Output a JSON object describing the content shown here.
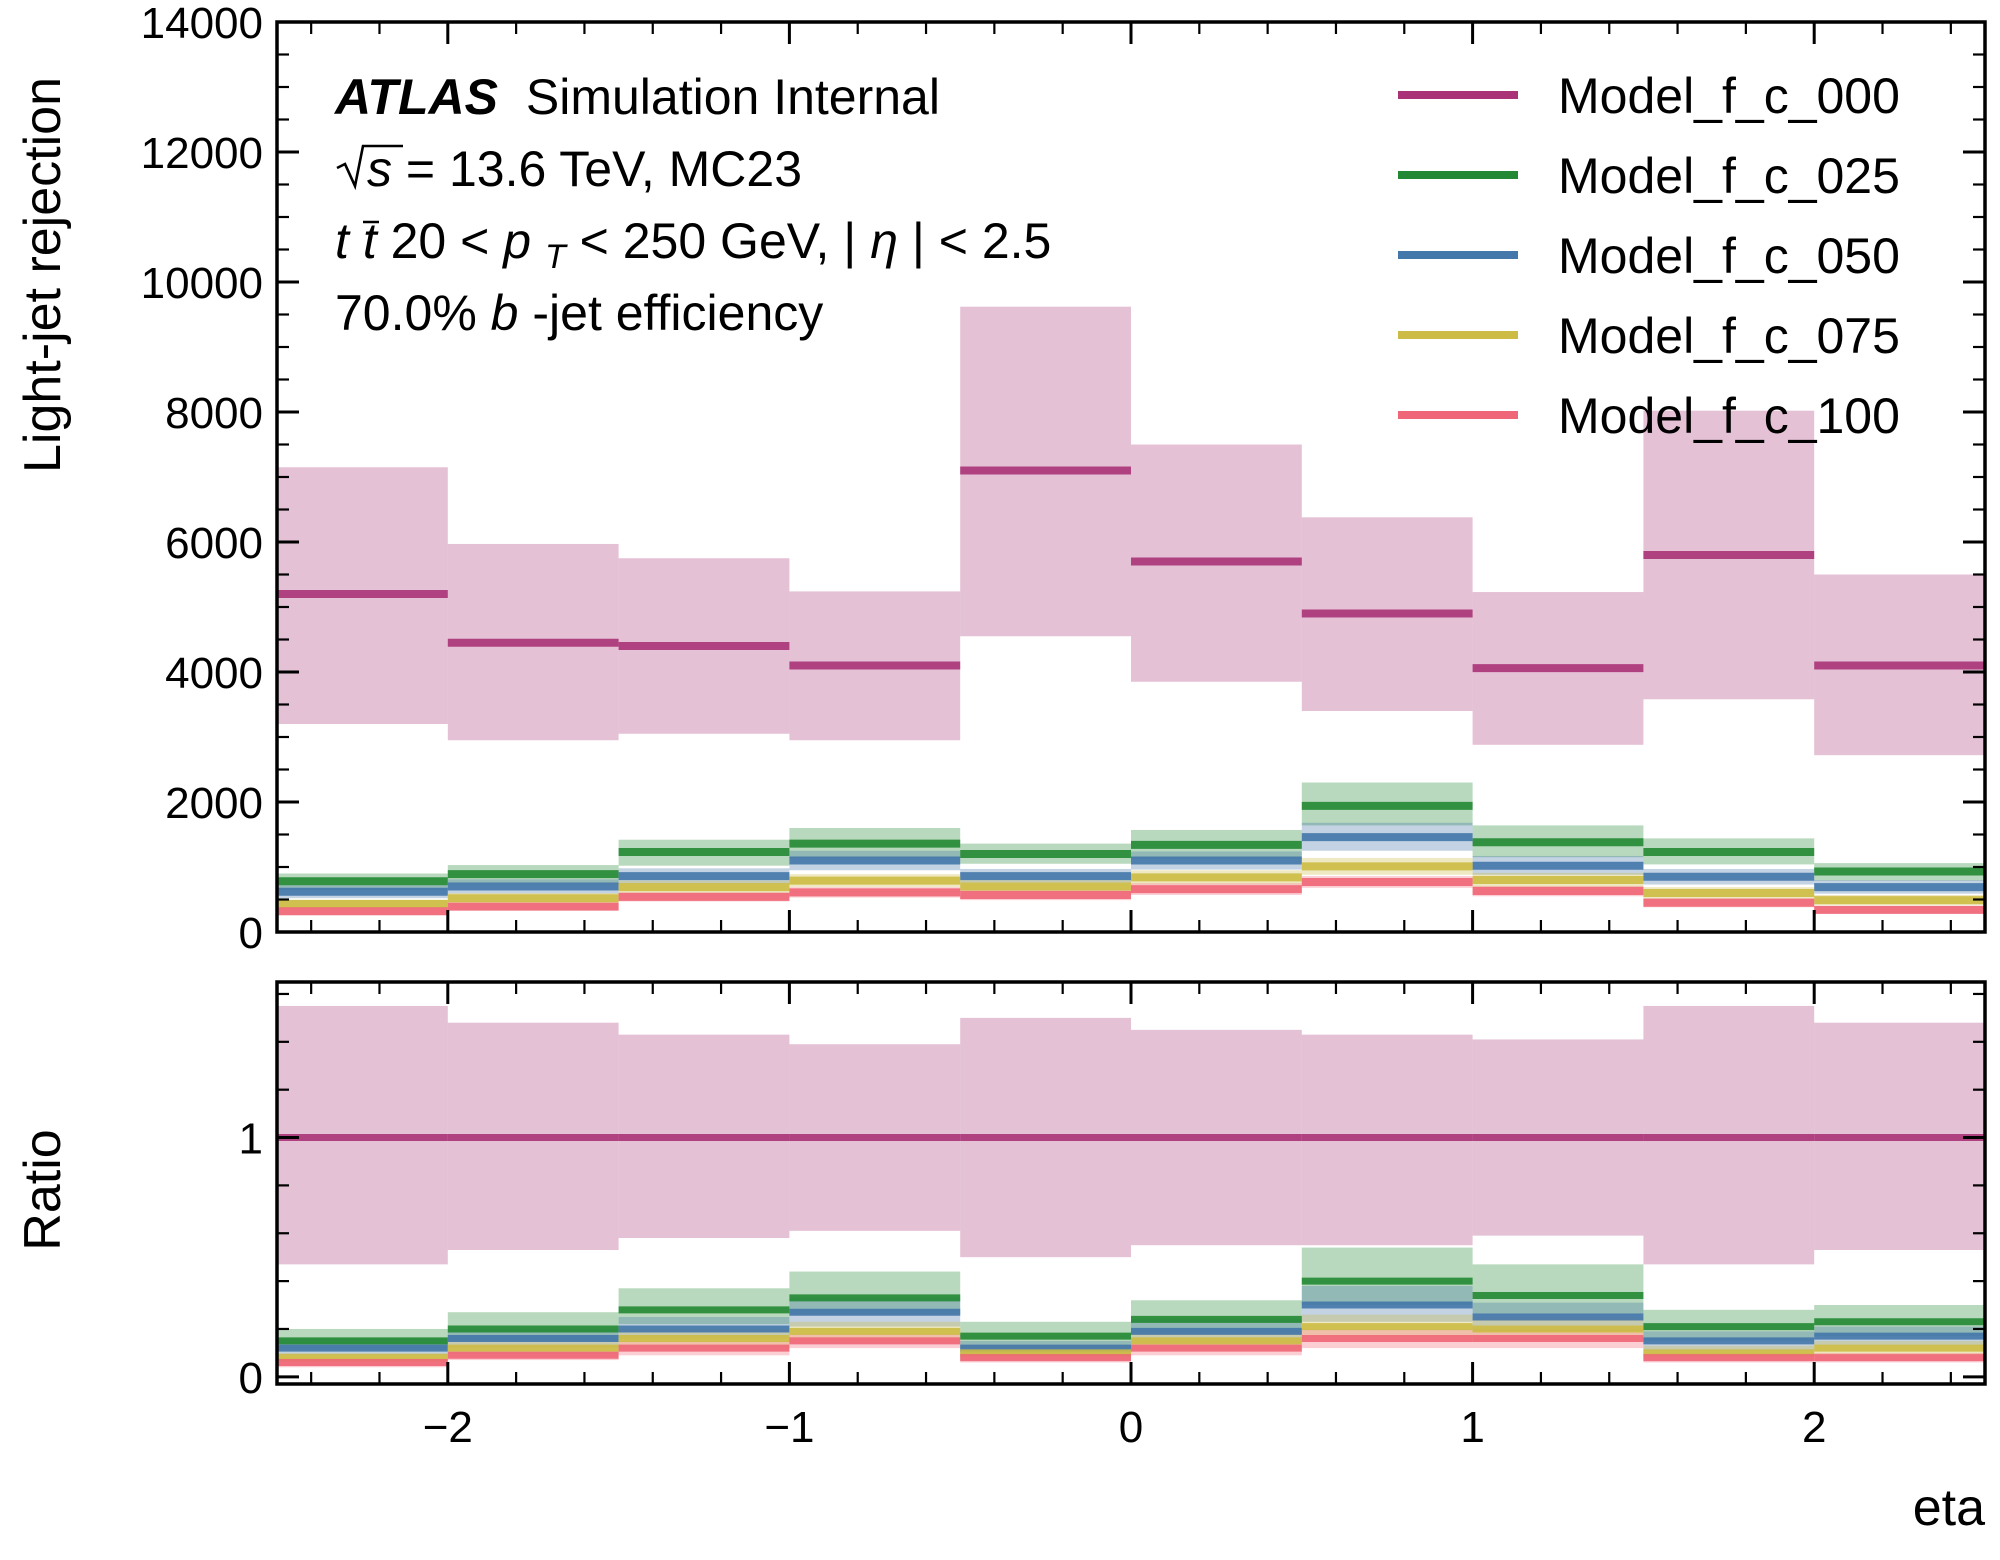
{
  "chart_data": [
    {
      "type": "line",
      "panel": "main",
      "ylabel": "Light-jet rejection",
      "xlabel": "",
      "xlim": [
        -2.5,
        2.5
      ],
      "ylim": [
        0,
        14000
      ],
      "yticks": [
        0,
        2000,
        4000,
        6000,
        8000,
        10000,
        12000,
        14000
      ],
      "ytick_labels": [
        "0",
        "2000",
        "4000",
        "6000",
        "8000",
        "10000",
        "12000",
        "14000"
      ],
      "bin_edges": [
        -2.5,
        -2.0,
        -1.5,
        -1.0,
        -0.5,
        0.0,
        0.5,
        1.0,
        1.5,
        2.0,
        2.5
      ],
      "legend_position": "top-right",
      "annotations": {
        "atlas": "ATLAS",
        "label": "Simulation Internal",
        "line2_sqrt": "s",
        "line2_rest": " = 13.6 TeV, MC23",
        "line3_a": "t",
        "line3_b": "t",
        "line3_c": " 20 < ",
        "line3_d": "p",
        "line3_e": "T",
        "line3_f": " < 250 GeV, |",
        "line3_g": "η",
        "line3_h": "| < 2.5",
        "line4_a": "70.0% ",
        "line4_b": "b",
        "line4_c": "-jet efficiency"
      },
      "series": [
        {
          "name": "Model_f_c_000",
          "color": "#aa3377",
          "values": [
            5200,
            4450,
            4400,
            4100,
            7100,
            5700,
            4900,
            4060,
            5800,
            4100
          ],
          "err_low": [
            3200,
            2950,
            3050,
            2950,
            4550,
            3850,
            3400,
            2880,
            3580,
            2720
          ],
          "err_high": [
            7150,
            5970,
            5750,
            5240,
            9620,
            7500,
            6380,
            5230,
            8020,
            5500
          ]
        },
        {
          "name": "Model_f_c_025",
          "color": "#228833",
          "values": [
            780,
            890,
            1230,
            1360,
            1200,
            1340,
            1940,
            1380,
            1230,
            930
          ],
          "err_low": [
            640,
            740,
            1020,
            1130,
            1050,
            1120,
            1640,
            1150,
            1040,
            790
          ],
          "err_high": [
            900,
            1030,
            1420,
            1600,
            1360,
            1570,
            2300,
            1640,
            1440,
            1060
          ]
        },
        {
          "name": "Model_f_c_050",
          "color": "#4477aa",
          "values": [
            620,
            700,
            860,
            1100,
            860,
            1100,
            1460,
            1020,
            850,
            690
          ],
          "err_low": [
            520,
            590,
            740,
            950,
            760,
            960,
            1250,
            880,
            730,
            590
          ],
          "err_high": [
            720,
            810,
            980,
            1250,
            970,
            1240,
            1680,
            1170,
            970,
            800
          ]
        },
        {
          "name": "Model_f_c_075",
          "color": "#ccbb44",
          "values": [
            430,
            520,
            690,
            790,
            700,
            840,
            1010,
            800,
            600,
            490
          ],
          "err_low": [
            360,
            440,
            590,
            690,
            610,
            730,
            880,
            690,
            510,
            410
          ],
          "err_high": [
            500,
            600,
            790,
            890,
            800,
            950,
            1140,
            910,
            690,
            570
          ]
        },
        {
          "name": "Model_f_c_100",
          "color": "#ee6677",
          "values": [
            320,
            390,
            540,
            610,
            570,
            660,
            770,
            630,
            450,
            340
          ],
          "err_low": [
            260,
            330,
            470,
            530,
            490,
            570,
            680,
            550,
            380,
            280
          ],
          "err_high": [
            380,
            450,
            610,
            690,
            650,
            750,
            860,
            710,
            520,
            400
          ]
        }
      ]
    },
    {
      "type": "line",
      "panel": "ratio",
      "ylabel": "Ratio",
      "xlabel": "eta",
      "xlim": [
        -2.5,
        2.5
      ],
      "ylim": [
        -0.03,
        1.65
      ],
      "yticks": [
        0,
        1
      ],
      "ytick_labels": [
        "0",
        "1"
      ],
      "xticks": [
        -2,
        -1,
        0,
        1,
        2
      ],
      "xtick_labels": [
        "−2",
        "−1",
        "0",
        "1",
        "2"
      ],
      "bin_edges": [
        -2.5,
        -2.0,
        -1.5,
        -1.0,
        -0.5,
        0.0,
        0.5,
        1.0,
        1.5,
        2.0,
        2.5
      ],
      "series": [
        {
          "name": "Model_f_c_000",
          "color": "#aa3377",
          "values": [
            1,
            1,
            1,
            1,
            1,
            1,
            1,
            1,
            1,
            1
          ],
          "err_low": [
            0.47,
            0.53,
            0.58,
            0.61,
            0.5,
            0.55,
            0.55,
            0.59,
            0.47,
            0.53
          ],
          "err_high": [
            1.55,
            1.48,
            1.43,
            1.39,
            1.5,
            1.45,
            1.43,
            1.41,
            1.55,
            1.48
          ]
        },
        {
          "name": "Model_f_c_025",
          "color": "#228833",
          "values": [
            0.15,
            0.2,
            0.28,
            0.33,
            0.17,
            0.24,
            0.4,
            0.34,
            0.21,
            0.23
          ],
          "err_low": [
            0.11,
            0.15,
            0.22,
            0.26,
            0.12,
            0.18,
            0.3,
            0.26,
            0.15,
            0.17
          ],
          "err_high": [
            0.2,
            0.27,
            0.37,
            0.44,
            0.23,
            0.32,
            0.54,
            0.47,
            0.28,
            0.3
          ]
        },
        {
          "name": "Model_f_c_050",
          "color": "#4477aa",
          "values": [
            0.12,
            0.16,
            0.2,
            0.27,
            0.12,
            0.19,
            0.3,
            0.25,
            0.15,
            0.17
          ],
          "err_low": [
            0.09,
            0.12,
            0.16,
            0.21,
            0.09,
            0.15,
            0.23,
            0.19,
            0.11,
            0.13
          ],
          "err_high": [
            0.16,
            0.2,
            0.25,
            0.33,
            0.15,
            0.24,
            0.38,
            0.31,
            0.19,
            0.21
          ]
        },
        {
          "name": "Model_f_c_075",
          "color": "#ccbb44",
          "values": [
            0.08,
            0.12,
            0.16,
            0.19,
            0.1,
            0.15,
            0.21,
            0.2,
            0.1,
            0.12
          ],
          "err_low": [
            0.06,
            0.09,
            0.12,
            0.15,
            0.07,
            0.11,
            0.16,
            0.15,
            0.07,
            0.09
          ],
          "err_high": [
            0.1,
            0.15,
            0.2,
            0.23,
            0.13,
            0.19,
            0.26,
            0.25,
            0.13,
            0.15
          ]
        },
        {
          "name": "Model_f_c_100",
          "color": "#ee6677",
          "values": [
            0.06,
            0.09,
            0.12,
            0.15,
            0.08,
            0.12,
            0.16,
            0.16,
            0.08,
            0.08
          ],
          "err_low": [
            0.04,
            0.07,
            0.09,
            0.12,
            0.06,
            0.09,
            0.12,
            0.12,
            0.06,
            0.06
          ],
          "err_high": [
            0.08,
            0.11,
            0.15,
            0.18,
            0.1,
            0.15,
            0.2,
            0.2,
            0.1,
            0.1
          ]
        }
      ]
    }
  ]
}
